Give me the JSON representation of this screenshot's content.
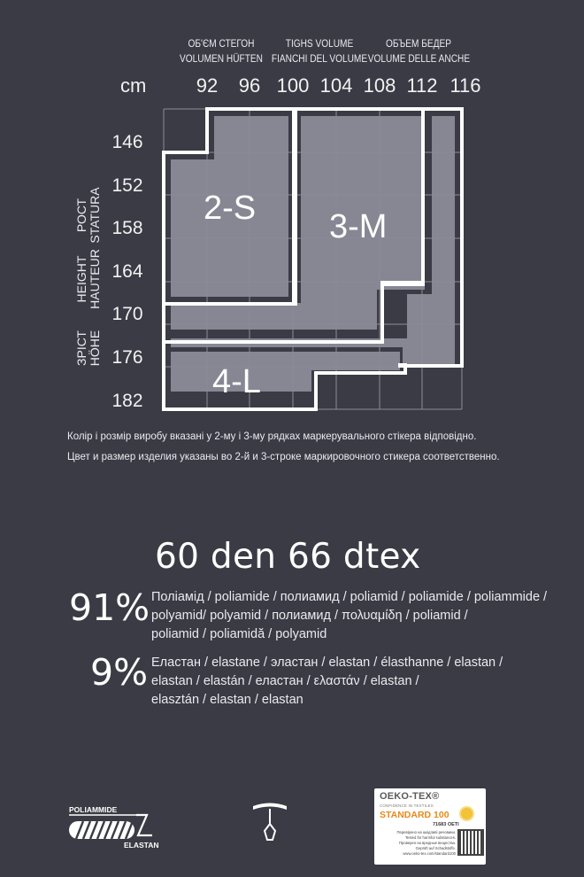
{
  "chart_data": {
    "type": "table",
    "unit_label": "cm",
    "hip_volume_headers": {
      "col1": [
        "ОБ'ЄМ СТЕГОН",
        "VOLUMEN HÜFTEN"
      ],
      "col2": [
        "TIGHS VOLUME",
        "FIANCHI DEL VOLUME"
      ],
      "col3": [
        "ОБЪЕМ БЕДЕР",
        "VOLUME DELLE ANCHE"
      ]
    },
    "height_axis_labels": {
      "label1": [
        "HEIGHT",
        "HAUTEUR"
      ],
      "label2": [
        "РОСТ",
        "STATURA"
      ],
      "label3": [
        "ЗРІСТ",
        "HÖHE"
      ]
    },
    "hip_values": [
      "92",
      "96",
      "100",
      "104",
      "108",
      "112",
      "116"
    ],
    "height_values": [
      "146",
      "152",
      "158",
      "164",
      "170",
      "176",
      "182"
    ],
    "sizes": [
      {
        "label": "2-S"
      },
      {
        "label": "3-M"
      },
      {
        "label": "4-L"
      }
    ]
  },
  "notes": {
    "ukrainian": "Колір і розмір виробу вказані у 2-му і 3-му рядках маркерувального стікера відповідно.",
    "russian": "Цвет и размер изделия указаны во 2-й и 3-строке маркировочного стикера соответственно."
  },
  "density": "60 den  66 dtex",
  "composition": {
    "polyamide": {
      "percent": "91%",
      "lines": [
        "Поліамід / poliamide / полиамид / poliamid / poliamide / poliammide /",
        "polyamid/ polyamid / полиамид / πολυαμίδη / poliamid /",
        "poliamid / poliamidă / polyamid"
      ]
    },
    "elastane": {
      "percent": "9%",
      "lines": [
        "Еластан / elastane / эластан / elastan / élasthanne / elastan /",
        "elastan / elastán / еластан / ελαστάν / elastan /",
        "elasztán / elastan / elastan"
      ]
    }
  },
  "footer": {
    "fabric_icon": {
      "top_label": "POLIAMMIDE",
      "bottom_label": "ELASTAN"
    },
    "oeko": {
      "brand": "OEKO-TEX®",
      "tagline": "CONFIDENCE IN TEXTILES",
      "standard": "STANDARD 100",
      "code": "71683 OETI",
      "lines": [
        "Перевірено на шкідливі речовини.",
        "Tested for harmful substances.",
        "Проверен на вредные вещества.",
        "Geprüft auf Schadstoffe.",
        "www.oeko-tex.com/standard100"
      ]
    }
  }
}
